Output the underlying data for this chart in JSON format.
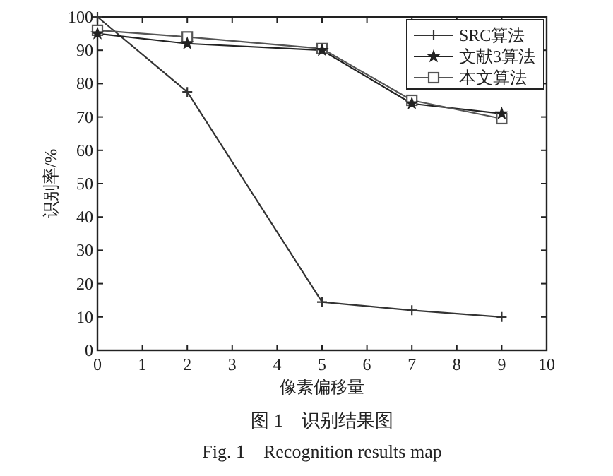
{
  "chart_data": {
    "type": "line",
    "title": "图 1　识别结果图",
    "subtitle": "Fig. 1　Recognition results map",
    "xlabel": "像素偏移量",
    "ylabel": "识别率/%",
    "x": [
      0,
      2,
      5,
      7,
      9
    ],
    "series": [
      {
        "name": "SRC算法",
        "color": "#333333",
        "marker": "cross",
        "values": [
          100,
          77.5,
          14.5,
          12,
          10
        ]
      },
      {
        "name": "文献3算法",
        "color": "#222222",
        "marker": "star",
        "values": [
          95,
          92,
          90,
          74,
          71
        ]
      },
      {
        "name": "本文算法",
        "color": "#555555",
        "marker": "square",
        "values": [
          96,
          94,
          90.5,
          75,
          69.5
        ]
      }
    ],
    "xlim": [
      0,
      10
    ],
    "xticks": [
      0,
      1,
      2,
      3,
      4,
      5,
      6,
      7,
      8,
      9,
      10
    ],
    "ylim": [
      0,
      100
    ],
    "yticks": [
      0,
      10,
      20,
      30,
      40,
      50,
      60,
      70,
      80,
      90,
      100
    ],
    "legend": "top right",
    "grid": false,
    "line_style": "solid"
  }
}
